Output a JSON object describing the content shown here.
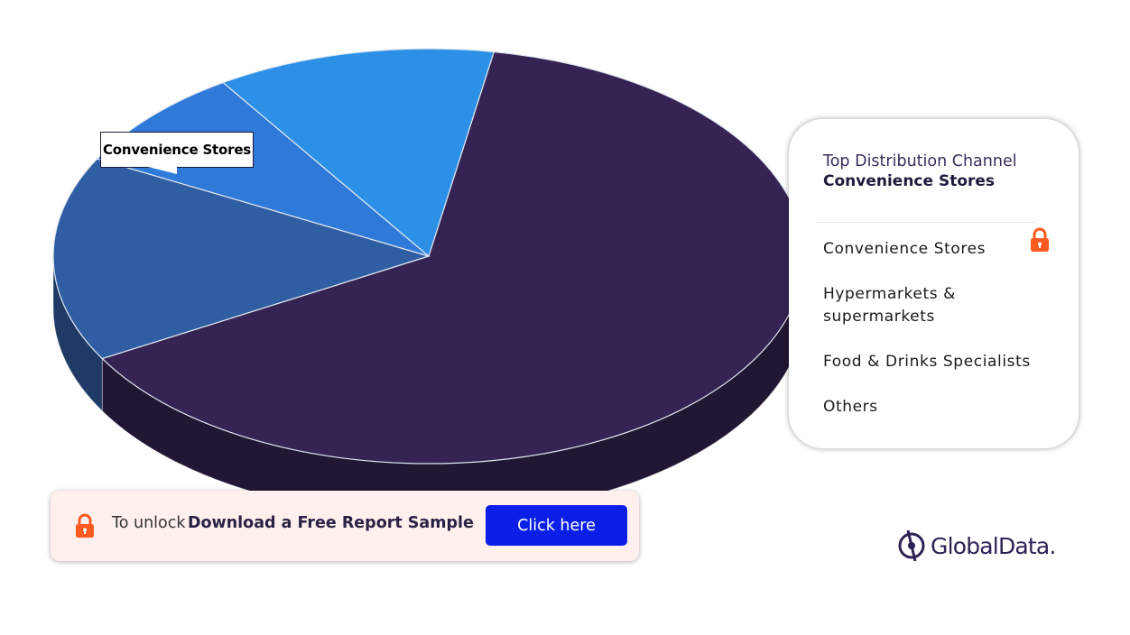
{
  "chart_data": {
    "type": "pie",
    "style": "3d",
    "slices": [
      {
        "label": "Convenience Stores",
        "value": 64,
        "color": "#352353"
      },
      {
        "label": "Hypermarkets & supermarkets",
        "value": 16,
        "color": "#305ea3"
      },
      {
        "label": "Food & Drinks Specialists",
        "value": 8,
        "color": "#2f7ad9"
      },
      {
        "label": "Others",
        "value": 12,
        "color": "#2c91e6"
      }
    ],
    "callout": "Convenience Stores"
  },
  "legend": {
    "heading": "Top Distribution Channel",
    "top_value": "Convenience Stores",
    "items": [
      "Convenience Stores",
      "Hypermarkets & supermarkets",
      "Food & Drinks Specialists",
      "Others"
    ],
    "lock_icon": "lock-icon"
  },
  "banner": {
    "prefix": "To unlock",
    "strong": "Download a Free Report Sample",
    "button_label": "Click here",
    "lock_icon": "lock-icon"
  },
  "brand": {
    "name": "GlobalData."
  },
  "colors": {
    "accent": "#ff5a1f",
    "button": "#0c1fe8",
    "banner_bg": "#fff0ee"
  }
}
